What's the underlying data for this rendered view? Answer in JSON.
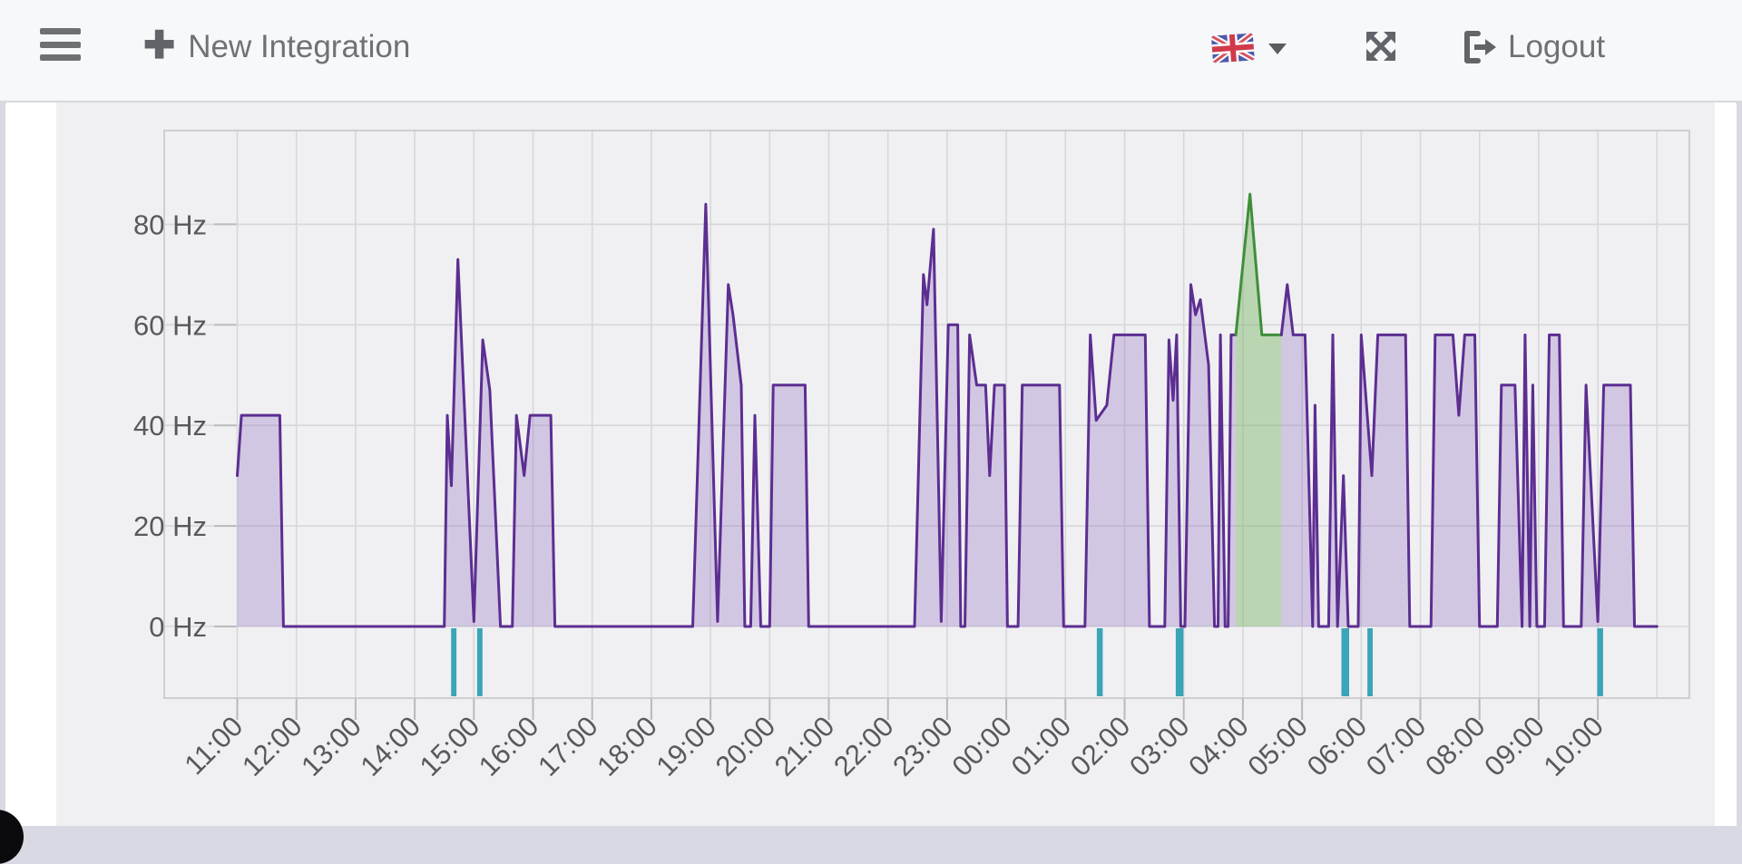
{
  "header": {
    "new_integration_label": "New Integration",
    "logout_label": "Logout",
    "icons": {
      "menu": "hamburger-icon",
      "new": "plus-icon",
      "language": "uk-flag-icon",
      "language_caret": "chevron-down-icon",
      "fullscreen": "expand-arrows-icon",
      "logout": "sign-out-icon"
    }
  },
  "chart_data": {
    "type": "area",
    "title": "",
    "xlabel": "",
    "ylabel": "Hz",
    "grid": true,
    "legend": "none",
    "ylim": [
      -14,
      98.5
    ],
    "x_axis_hours_after_start": [
      0,
      24
    ],
    "y_ticks": [
      "0 Hz",
      "20 Hz",
      "40 Hz",
      "60 Hz",
      "80 Hz"
    ],
    "y_tick_values": [
      0,
      20,
      40,
      60,
      80
    ],
    "x_ticks": [
      "11:00",
      "12:00",
      "13:00",
      "14:00",
      "15:00",
      "16:00",
      "17:00",
      "18:00",
      "19:00",
      "20:00",
      "21:00",
      "22:00",
      "23:00",
      "00:00",
      "01:00",
      "02:00",
      "03:00",
      "04:00",
      "05:00",
      "06:00",
      "07:00",
      "08:00",
      "09:00",
      "10:00"
    ],
    "palette": {
      "canvas": "#f0f0f2",
      "grid": "#d7d7db",
      "spine": "#c6c6ca",
      "tick": "#b9b9bf",
      "axis_text": "#58595b",
      "series_line": "#5c2e91",
      "series_fill": "rgba(130,90,190,0.27)",
      "highlight_line": "#3f8f3a",
      "highlight_fill": "rgba(120,180,100,0.45)",
      "event": "#3ba4b7"
    },
    "segments": [
      {
        "name": "frequency",
        "color": "#5c2e91",
        "fill": "rgba(130,90,190,0.27)",
        "points": [
          [
            0,
            30
          ],
          [
            0.07,
            42
          ],
          [
            0.72,
            42
          ],
          [
            0.78,
            0
          ],
          [
            3.5,
            0
          ],
          [
            3.55,
            42
          ],
          [
            3.62,
            28
          ],
          [
            3.73,
            73
          ],
          [
            4.0,
            1
          ],
          [
            4.15,
            57
          ],
          [
            4.27,
            47
          ],
          [
            4.45,
            0
          ],
          [
            4.65,
            0
          ],
          [
            4.72,
            42
          ],
          [
            4.85,
            30
          ],
          [
            4.95,
            42
          ],
          [
            5.3,
            42
          ],
          [
            5.37,
            0
          ],
          [
            7.7,
            0
          ],
          [
            7.92,
            84
          ],
          [
            8.12,
            1
          ],
          [
            8.3,
            68
          ],
          [
            8.38,
            62
          ],
          [
            8.52,
            48
          ],
          [
            8.58,
            0
          ],
          [
            8.68,
            0
          ],
          [
            8.75,
            42
          ],
          [
            8.85,
            0
          ],
          [
            9.0,
            0
          ],
          [
            9.06,
            48
          ],
          [
            9.6,
            48
          ],
          [
            9.66,
            0
          ],
          [
            11.45,
            0
          ],
          [
            11.6,
            70
          ],
          [
            11.66,
            64
          ],
          [
            11.77,
            79
          ],
          [
            11.9,
            1
          ],
          [
            12.02,
            60
          ],
          [
            12.18,
            60
          ],
          [
            12.23,
            0
          ],
          [
            12.3,
            0
          ],
          [
            12.38,
            58
          ],
          [
            12.5,
            48
          ],
          [
            12.65,
            48
          ],
          [
            12.72,
            30
          ],
          [
            12.8,
            48
          ],
          [
            12.97,
            48
          ],
          [
            13.02,
            0
          ],
          [
            13.2,
            0
          ],
          [
            13.27,
            48
          ],
          [
            13.9,
            48
          ],
          [
            13.97,
            0
          ],
          [
            14.33,
            0
          ],
          [
            14.42,
            58
          ],
          [
            14.52,
            41
          ],
          [
            14.7,
            44
          ],
          [
            14.82,
            58
          ],
          [
            15.35,
            58
          ],
          [
            15.42,
            0
          ],
          [
            15.68,
            0
          ],
          [
            15.75,
            57
          ],
          [
            15.82,
            45
          ],
          [
            15.88,
            58
          ],
          [
            15.95,
            0
          ],
          [
            16.02,
            0
          ],
          [
            16.12,
            68
          ],
          [
            16.2,
            62
          ],
          [
            16.28,
            65
          ],
          [
            16.42,
            52
          ],
          [
            16.52,
            0
          ],
          [
            16.58,
            0
          ],
          [
            16.62,
            58
          ],
          [
            16.7,
            0
          ],
          [
            16.75,
            0
          ],
          [
            16.8,
            58
          ],
          [
            16.88,
            58
          ]
        ]
      },
      {
        "name": "highlight",
        "color": "#3f8f3a",
        "fill": "rgba(120,180,100,0.45)",
        "points": [
          [
            16.88,
            58
          ],
          [
            17.12,
            86
          ],
          [
            17.32,
            58
          ],
          [
            17.65,
            58
          ]
        ]
      },
      {
        "name": "frequency",
        "color": "#5c2e91",
        "fill": "rgba(130,90,190,0.27)",
        "points": [
          [
            17.65,
            58
          ],
          [
            17.75,
            68
          ],
          [
            17.85,
            58
          ],
          [
            18.05,
            58
          ],
          [
            18.18,
            0
          ],
          [
            18.22,
            44
          ],
          [
            18.28,
            0
          ],
          [
            18.45,
            0
          ],
          [
            18.52,
            58
          ],
          [
            18.6,
            0
          ],
          [
            18.7,
            30
          ],
          [
            18.78,
            0
          ],
          [
            18.95,
            0
          ],
          [
            19.0,
            58
          ],
          [
            19.18,
            30
          ],
          [
            19.28,
            58
          ],
          [
            19.75,
            58
          ],
          [
            19.82,
            0
          ],
          [
            20.18,
            0
          ],
          [
            20.25,
            58
          ],
          [
            20.55,
            58
          ],
          [
            20.65,
            42
          ],
          [
            20.75,
            58
          ],
          [
            20.92,
            58
          ],
          [
            21.0,
            0
          ],
          [
            21.3,
            0
          ],
          [
            21.37,
            48
          ],
          [
            21.6,
            48
          ],
          [
            21.72,
            0
          ],
          [
            21.77,
            58
          ],
          [
            21.85,
            0
          ],
          [
            21.9,
            48
          ],
          [
            21.97,
            0
          ],
          [
            22.1,
            0
          ],
          [
            22.18,
            58
          ],
          [
            22.35,
            58
          ],
          [
            22.42,
            0
          ],
          [
            22.72,
            0
          ],
          [
            22.8,
            48
          ],
          [
            23.0,
            1
          ],
          [
            23.1,
            48
          ],
          [
            23.55,
            48
          ],
          [
            23.62,
            0
          ],
          [
            24.0,
            0
          ]
        ]
      }
    ],
    "events": {
      "name": "downtime-markers",
      "color": "#3ba4b7",
      "bars_hour_width": [
        [
          3.66,
          0.09
        ],
        [
          4.1,
          0.09
        ],
        [
          14.58,
          0.1
        ],
        [
          15.93,
          0.13
        ],
        [
          18.73,
          0.13
        ],
        [
          19.15,
          0.09
        ],
        [
          23.04,
          0.1
        ]
      ]
    }
  }
}
